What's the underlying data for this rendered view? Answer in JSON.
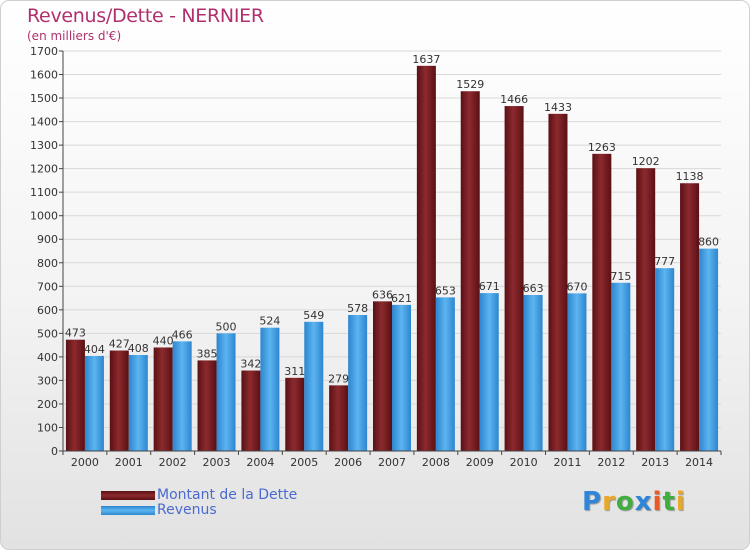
{
  "title": "Revenus/Dette - NERNIER",
  "subtitle": "(en milliers d'€)",
  "logo": {
    "text": "Proxiti",
    "letters": [
      {
        "ch": "P",
        "color": "#2f86d9"
      },
      {
        "ch": "r",
        "color": "#e8a82a"
      },
      {
        "ch": "o",
        "color": "#3fae3f"
      },
      {
        "ch": "x",
        "color": "#2f86d9"
      },
      {
        "ch": "i",
        "color": "#e85a28"
      },
      {
        "ch": "t",
        "color": "#3fae3f"
      },
      {
        "ch": "i",
        "color": "#e8a82a"
      }
    ]
  },
  "colors": {
    "dette": "#7a1f24",
    "revenus": "#3e9ee6",
    "grid": "#d8d8d8",
    "axis": "#444444"
  },
  "chart_data": {
    "type": "bar",
    "title": "Revenus/Dette - NERNIER",
    "ylabel": "(en milliers d'€)",
    "categories": [
      "2000",
      "2001",
      "2002",
      "2003",
      "2004",
      "2005",
      "2006",
      "2007",
      "2008",
      "2009",
      "2010",
      "2011",
      "2012",
      "2013",
      "2014"
    ],
    "series": [
      {
        "name": "Montant de la Dette",
        "values": [
          473,
          427,
          440,
          385,
          342,
          311,
          279,
          636,
          1637,
          1529,
          1466,
          1433,
          1263,
          1202,
          1138
        ]
      },
      {
        "name": "Revenus",
        "values": [
          404,
          408,
          466,
          500,
          524,
          549,
          578,
          621,
          653,
          671,
          663,
          670,
          715,
          777,
          860
        ]
      }
    ],
    "ylim": [
      0,
      1700
    ],
    "yticks": [
      0,
      100,
      200,
      300,
      400,
      500,
      600,
      700,
      800,
      900,
      1000,
      1100,
      1200,
      1300,
      1400,
      1500,
      1600,
      1700
    ],
    "grid": true,
    "legend": "bottom-left"
  }
}
